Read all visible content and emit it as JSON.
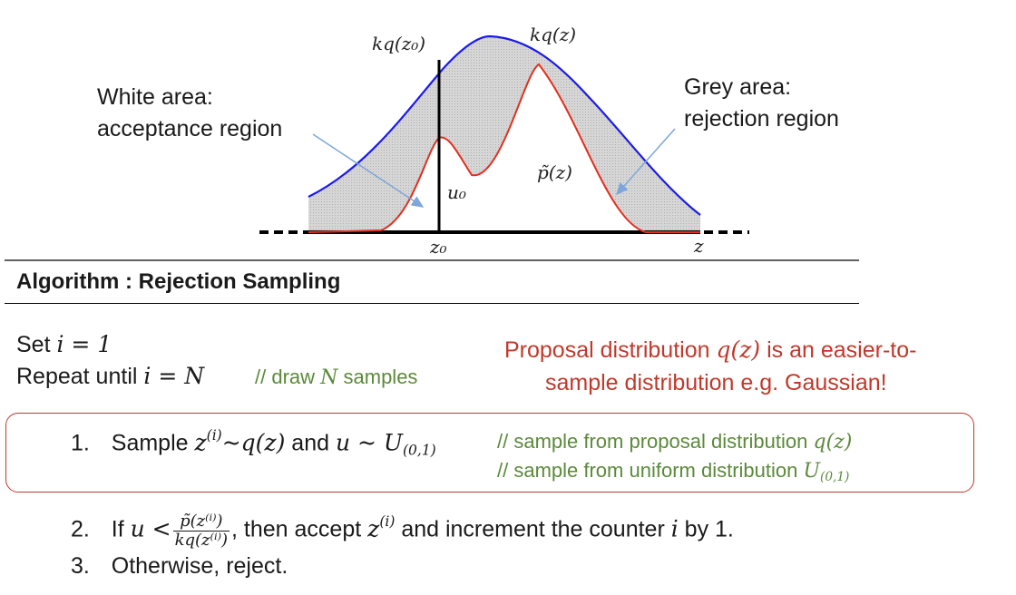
{
  "plot": {
    "label_kq_z0": "kq(z₀)",
    "label_kq_z": "kq(z)",
    "label_u0": "u₀",
    "label_p_tilde": "p̃(z)",
    "label_z0": "z₀",
    "label_z": "z",
    "white_area_line1": "White area:",
    "white_area_line2": "acceptance region",
    "grey_area_line1": "Grey area:",
    "grey_area_line2": "rejection region",
    "colors": {
      "envelope": "#1a1aee",
      "target": "#e0301e",
      "grey_fill": "#d2d2d2",
      "arrow": "#7ea6d8"
    }
  },
  "algorithm": {
    "title": "Algorithm : Rejection Sampling",
    "set_text": "Set ",
    "set_expr": "i = 1",
    "repeat_text": "Repeat until ",
    "repeat_expr": "i = N",
    "repeat_comment_prefix": "// draw ",
    "repeat_comment_var": "N",
    "repeat_comment_suffix": " samples",
    "note_line1_prefix": "Proposal distribution ",
    "note_line1_expr": "q(z)",
    "note_line1_suffix": " is an easier-to-",
    "note_line2": "sample distribution e.g. Gaussian!",
    "step1_num": "1.",
    "step1_text_a": "Sample ",
    "step1_expr_a": "z",
    "step1_sup_a": "(i)",
    "step1_expr_b": "~q(z)",
    "step1_text_b": " and ",
    "step1_expr_c": "u ~ U",
    "step1_sub_c": "(0,1)",
    "step1_comment1_prefix": "// sample from proposal distribution ",
    "step1_comment1_expr": "q(z)",
    "step1_comment2_prefix": "// sample from uniform distribution ",
    "step1_comment2_expr": "U",
    "step1_comment2_sub": "(0,1)",
    "step2_num": "2.",
    "step2_text_a": "If ",
    "step2_expr_a": "u <",
    "step2_frac_num": "p̃(z⁽ⁱ⁾)",
    "step2_frac_den": "kq(z⁽ⁱ⁾)",
    "step2_text_b": ", then accept ",
    "step2_expr_b": "z",
    "step2_sup_b": "(i)",
    "step2_text_c": " and increment the counter ",
    "step2_expr_c": "i",
    "step2_text_d": " by 1.",
    "step3_num": "3.",
    "step3_text": "Otherwise, reject."
  }
}
